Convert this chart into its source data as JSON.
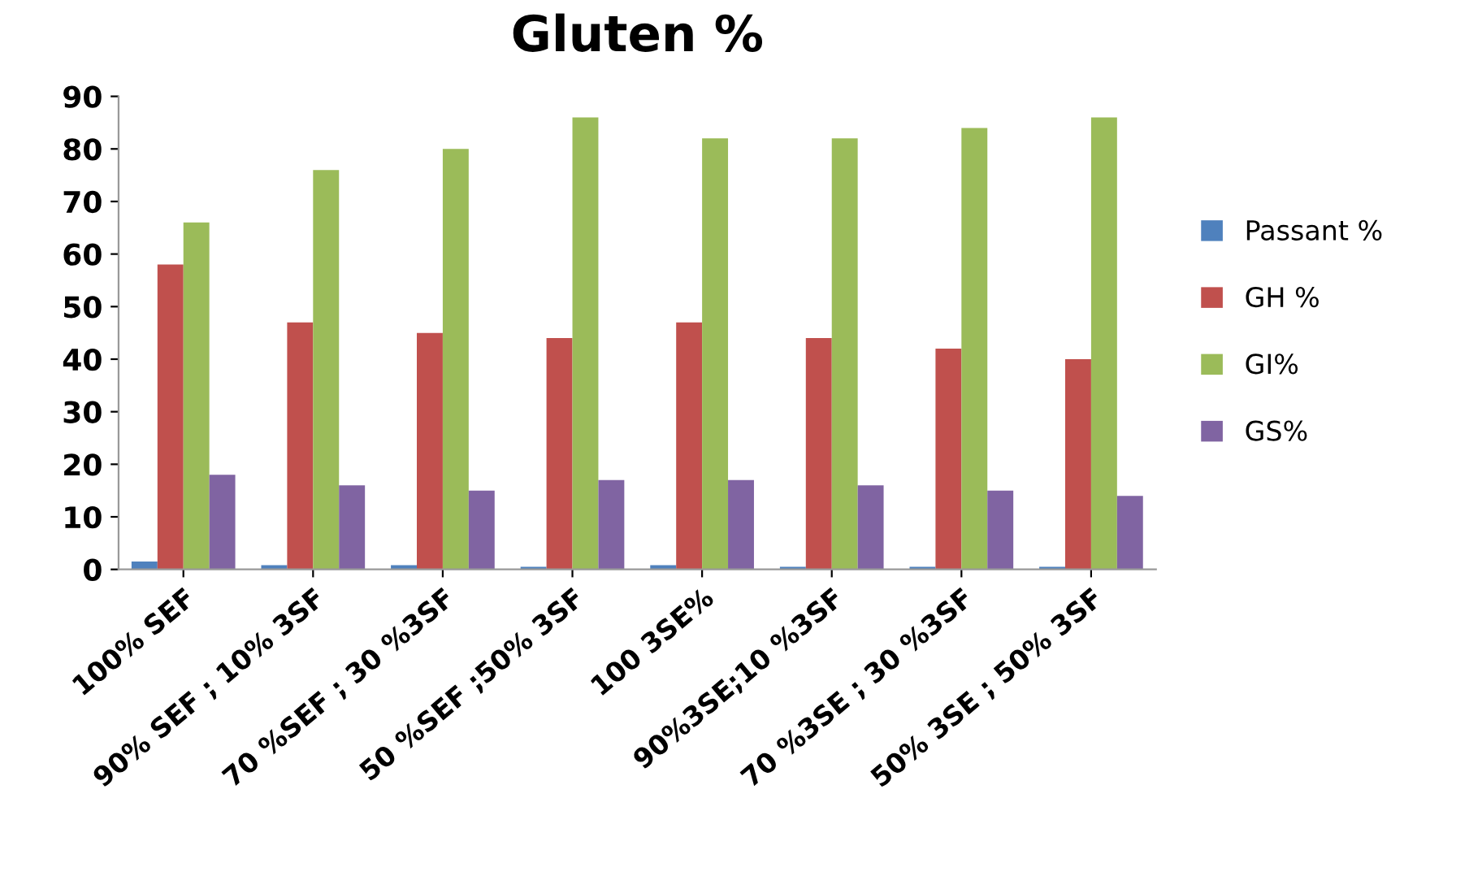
{
  "chart_data": {
    "type": "bar",
    "title": "Gluten %",
    "categories": [
      "100% SEF",
      "90% SEF ; 10% 3SF",
      "70 %SEF ; 30 %3SF",
      "50 %SEF ;50% 3SF",
      "100 3SE%",
      "90%3SE;10 %3SF",
      "70 %3SE ; 30 %3SF",
      "50% 3SE ; 50% 3SF"
    ],
    "series": [
      {
        "name": "Passant %",
        "color": "#4f81bd",
        "values": [
          1.5,
          0.8,
          0.8,
          0.5,
          0.8,
          0.5,
          0.5,
          0.5
        ]
      },
      {
        "name": "GH %",
        "color": "#c0504d",
        "values": [
          58,
          47,
          45,
          44,
          47,
          44,
          42,
          40
        ]
      },
      {
        "name": "GI%",
        "color": "#9bbb59",
        "values": [
          66,
          76,
          80,
          86,
          82,
          82,
          84,
          86
        ]
      },
      {
        "name": "GS%",
        "color": "#8064a2",
        "values": [
          18,
          16,
          15,
          17,
          17,
          16,
          15,
          14
        ]
      }
    ],
    "ylim": [
      0,
      90
    ],
    "yticks": [
      0,
      10,
      20,
      30,
      40,
      50,
      60,
      70,
      80,
      90
    ],
    "grid": false,
    "legend": "right"
  }
}
